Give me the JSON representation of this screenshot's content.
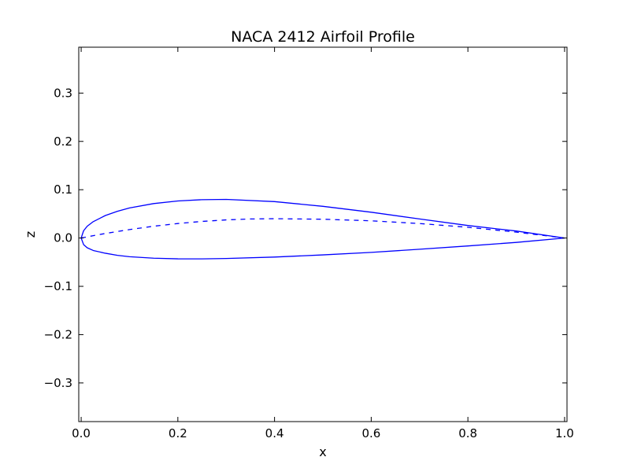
{
  "chart_data": {
    "type": "line",
    "title": "NACA 2412 Airfoil Profile",
    "xlabel": "x",
    "ylabel": "z",
    "xlim": [
      -0.005,
      1.005
    ],
    "ylim": [
      -0.38,
      0.395
    ],
    "x_ticks": [
      0.0,
      0.2,
      0.4,
      0.6,
      0.8,
      1.0
    ],
    "x_tick_labels": [
      "0.0",
      "0.2",
      "0.4",
      "0.6",
      "0.8",
      "1.0"
    ],
    "y_ticks": [
      -0.3,
      -0.2,
      -0.1,
      0.0,
      0.1,
      0.2,
      0.3
    ],
    "y_tick_labels": [
      "−0.3",
      "−0.2",
      "−0.1",
      "0.0",
      "0.1",
      "0.2",
      "0.3"
    ],
    "grid": false,
    "legend": "none",
    "series": [
      {
        "color": "#0000ff",
        "style": "solid",
        "points": [
          [
            1.0,
            0.0
          ],
          [
            0.9,
            0.0145
          ],
          [
            0.8,
            0.0259
          ],
          [
            0.7,
            0.0394
          ],
          [
            0.6,
            0.0534
          ],
          [
            0.5,
            0.0656
          ],
          [
            0.4,
            0.0754
          ],
          [
            0.3,
            0.0799
          ],
          [
            0.25,
            0.0794
          ],
          [
            0.2,
            0.0767
          ],
          [
            0.15,
            0.0713
          ],
          [
            0.1,
            0.0622
          ],
          [
            0.075,
            0.0553
          ],
          [
            0.05,
            0.0466
          ],
          [
            0.025,
            0.0339
          ],
          [
            0.0125,
            0.0244
          ],
          [
            0.005,
            0.015
          ],
          [
            0.0,
            0.0
          ],
          [
            0.005,
            -0.0136
          ],
          [
            0.0125,
            -0.0202
          ],
          [
            0.025,
            -0.0258
          ],
          [
            0.05,
            -0.0315
          ],
          [
            0.075,
            -0.0358
          ],
          [
            0.1,
            -0.0387
          ],
          [
            0.15,
            -0.0418
          ],
          [
            0.2,
            -0.0431
          ],
          [
            0.25,
            -0.0432
          ],
          [
            0.3,
            -0.0424
          ],
          [
            0.4,
            -0.0394
          ],
          [
            0.5,
            -0.0349
          ],
          [
            0.6,
            -0.0298
          ],
          [
            0.7,
            -0.0232
          ],
          [
            0.8,
            -0.0164
          ],
          [
            0.9,
            -0.0091
          ],
          [
            1.0,
            0.0
          ]
        ]
      },
      {
        "color": "#0000ff",
        "style": "dashed",
        "points": [
          [
            0.0,
            0.0
          ],
          [
            0.025,
            0.0049
          ],
          [
            0.05,
            0.0094
          ],
          [
            0.1,
            0.0175
          ],
          [
            0.15,
            0.0244
          ],
          [
            0.2,
            0.03
          ],
          [
            0.25,
            0.0344
          ],
          [
            0.3,
            0.0375
          ],
          [
            0.35,
            0.0394
          ],
          [
            0.4,
            0.04
          ],
          [
            0.5,
            0.0389
          ],
          [
            0.6,
            0.0356
          ],
          [
            0.7,
            0.03
          ],
          [
            0.8,
            0.0222
          ],
          [
            0.9,
            0.0122
          ],
          [
            1.0,
            0.0
          ]
        ]
      }
    ]
  }
}
